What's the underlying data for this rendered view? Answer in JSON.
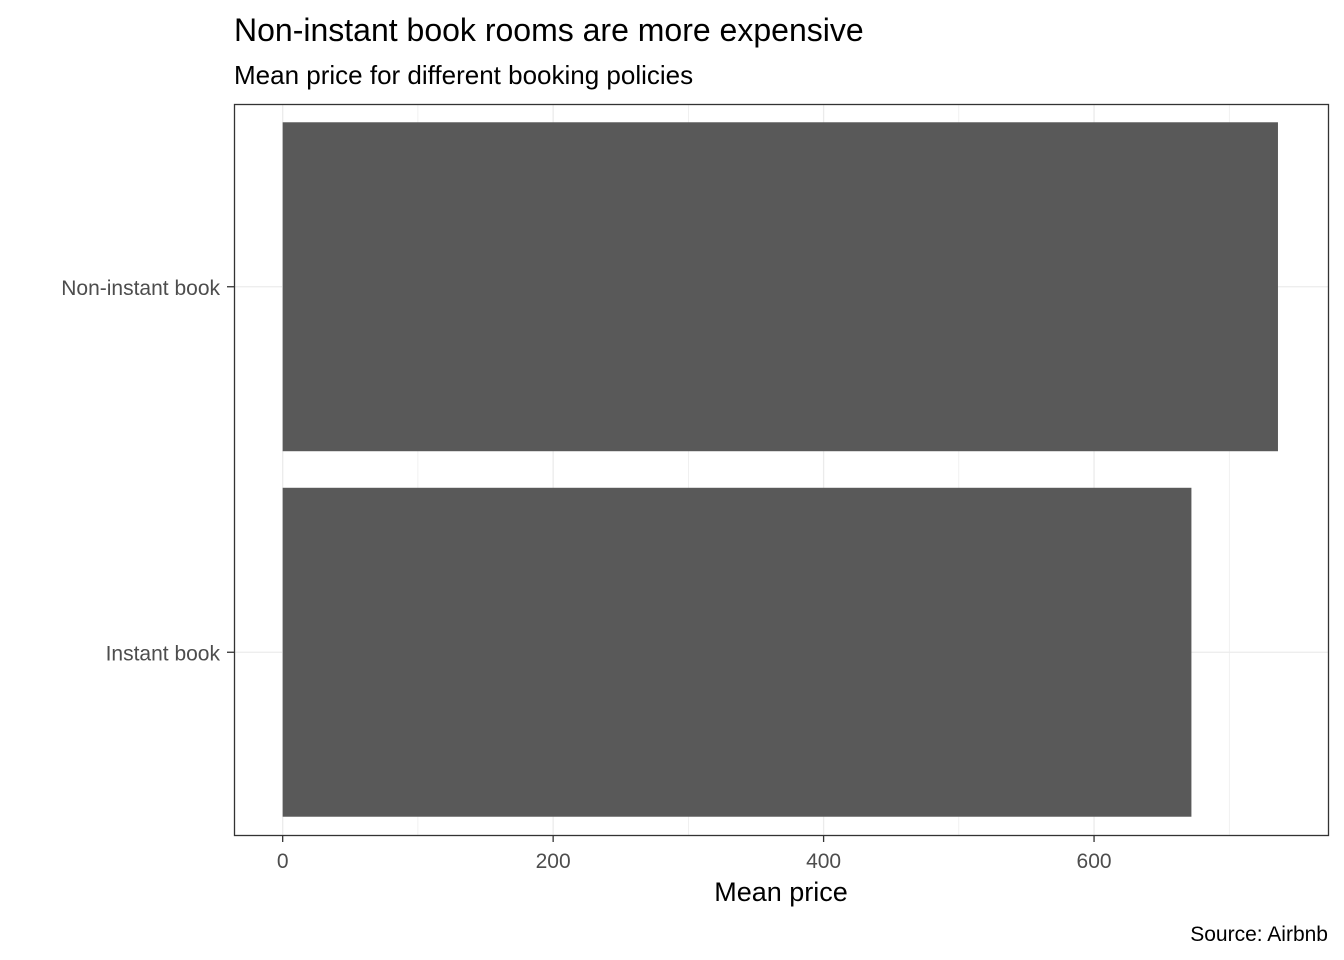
{
  "chart_data": {
    "type": "bar",
    "orientation": "horizontal",
    "title": "Non-instant book rooms are more expensive",
    "subtitle": "Mean price for different booking policies",
    "xlabel": "Mean price",
    "ylabel": "",
    "caption": "Source: Airbnb",
    "categories": [
      "Non-instant book",
      "Instant book"
    ],
    "values": [
      736,
      672
    ],
    "xlim": [
      -36,
      773
    ],
    "x_ticks": [
      0,
      200,
      400,
      600
    ],
    "x_tick_labels": [
      "0",
      "200",
      "400",
      "600"
    ],
    "grid": true,
    "legend": "none",
    "bar_color": "#595959",
    "grid_color": "#ebebeb",
    "panel_border_color": "#333333"
  }
}
